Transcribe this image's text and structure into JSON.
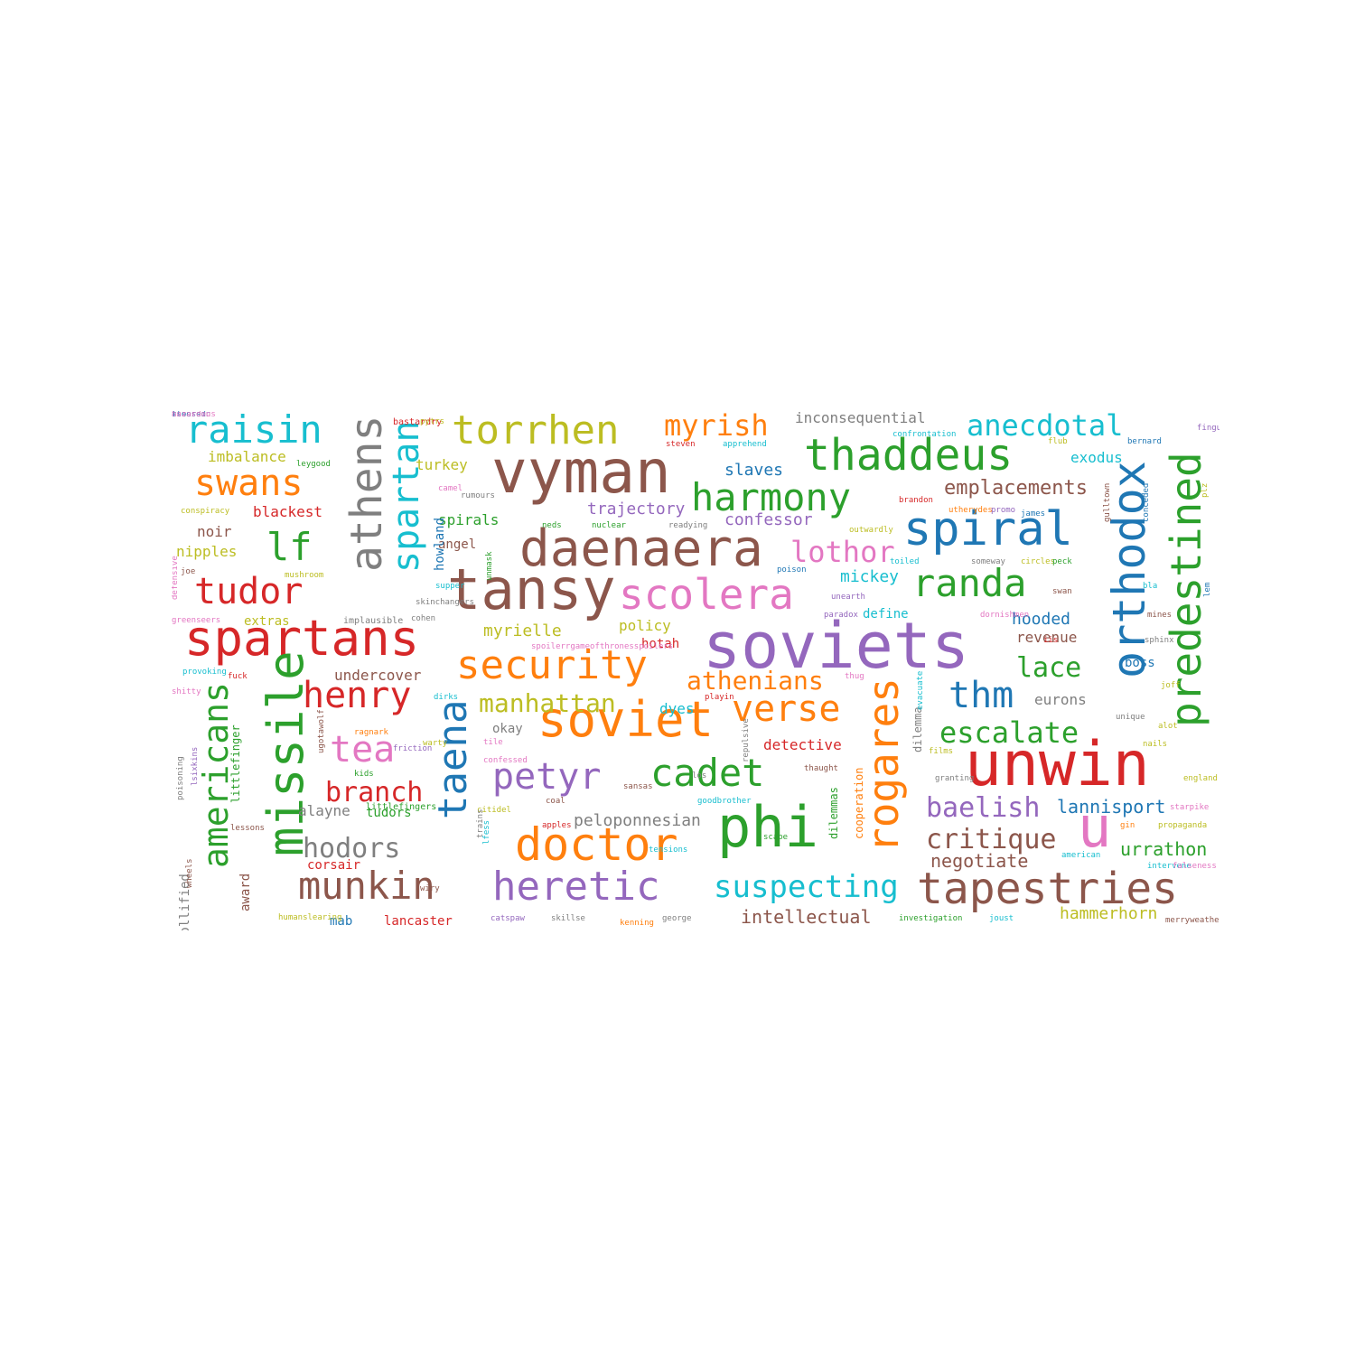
{
  "palette": {
    "blue": "#1f77b4",
    "orange": "#ff7f0e",
    "green": "#2ca02c",
    "red": "#d62728",
    "purple": "#9467bd",
    "brown": "#8c564b",
    "pink": "#e377c2",
    "gray": "#7f7f7f",
    "olive": "#bcbd22",
    "cyan": "#17becf"
  },
  "words": [
    {
      "text": "soviets",
      "color": "purple",
      "size": 70
    },
    {
      "text": "unwin",
      "color": "red",
      "size": 68
    },
    {
      "text": "vyman",
      "color": "brown",
      "size": 66
    },
    {
      "text": "tansy",
      "color": "brown",
      "size": 62
    },
    {
      "text": "phi",
      "color": "green",
      "size": 62
    },
    {
      "text": "daenaera",
      "color": "brown",
      "size": 56
    },
    {
      "text": "spartans",
      "color": "red",
      "size": 54
    },
    {
      "text": "soviet",
      "color": "orange",
      "size": 54
    },
    {
      "text": "missile",
      "color": "green",
      "size": 54
    },
    {
      "text": "u",
      "color": "pink",
      "size": 62
    },
    {
      "text": "spiral",
      "color": "blue",
      "size": 52
    },
    {
      "text": "doctor",
      "color": "orange",
      "size": 50
    },
    {
      "text": "orthodox",
      "color": "blue",
      "size": 50
    },
    {
      "text": "tapestries",
      "color": "brown",
      "size": 48
    },
    {
      "text": "thaddeus",
      "color": "green",
      "size": 48
    },
    {
      "text": "athens",
      "color": "gray",
      "size": 48
    },
    {
      "text": "predestined",
      "color": "green",
      "size": 46
    },
    {
      "text": "rogares",
      "color": "orange",
      "size": 46
    },
    {
      "text": "scolera",
      "color": "pink",
      "size": 46
    },
    {
      "text": "security",
      "color": "orange",
      "size": 44
    },
    {
      "text": "taena",
      "color": "blue",
      "size": 44
    },
    {
      "text": "heretic",
      "color": "purple",
      "size": 44
    },
    {
      "text": "torrhen",
      "color": "olive",
      "size": 44
    },
    {
      "text": "cadet",
      "color": "green",
      "size": 42
    },
    {
      "text": "munkin",
      "color": "brown",
      "size": 42
    },
    {
      "text": "harmony",
      "color": "green",
      "size": 42
    },
    {
      "text": "raisin",
      "color": "cyan",
      "size": 42
    },
    {
      "text": "randa",
      "color": "green",
      "size": 42
    },
    {
      "text": "petyr",
      "color": "purple",
      "size": 40
    },
    {
      "text": "tudor",
      "color": "red",
      "size": 40
    },
    {
      "text": "henry",
      "color": "red",
      "size": 40
    },
    {
      "text": "verse",
      "color": "orange",
      "size": 40
    },
    {
      "text": "thm",
      "color": "blue",
      "size": 40
    },
    {
      "text": "tea",
      "color": "pink",
      "size": 40
    },
    {
      "text": "swans",
      "color": "orange",
      "size": 40
    },
    {
      "text": "lf",
      "color": "green",
      "size": 42
    },
    {
      "text": "spartan",
      "color": "cyan",
      "size": 40
    },
    {
      "text": "americans",
      "color": "green",
      "size": 38
    },
    {
      "text": "suspecting",
      "color": "cyan",
      "size": 34
    },
    {
      "text": "myrish",
      "color": "orange",
      "size": 32
    },
    {
      "text": "anecdotal",
      "color": "cyan",
      "size": 32
    },
    {
      "text": "escalate",
      "color": "green",
      "size": 32
    },
    {
      "text": "lothor",
      "color": "pink",
      "size": 32
    },
    {
      "text": "baelish",
      "color": "purple",
      "size": 30
    },
    {
      "text": "critique",
      "color": "brown",
      "size": 30
    },
    {
      "text": "branch",
      "color": "red",
      "size": 30
    },
    {
      "text": "hodors",
      "color": "gray",
      "size": 30
    },
    {
      "text": "lace",
      "color": "green",
      "size": 30
    },
    {
      "text": "manhattan",
      "color": "olive",
      "size": 28
    },
    {
      "text": "athenians",
      "color": "orange",
      "size": 28
    },
    {
      "text": "emplacements",
      "color": "brown",
      "size": 22
    },
    {
      "text": "lannisport",
      "color": "blue",
      "size": 20
    },
    {
      "text": "negotiate",
      "color": "brown",
      "size": 20
    },
    {
      "text": "urrathon",
      "color": "green",
      "size": 20
    },
    {
      "text": "hammerhorn",
      "color": "olive",
      "size": 18
    },
    {
      "text": "intellectual",
      "color": "brown",
      "size": 20
    },
    {
      "text": "peloponnesian",
      "color": "gray",
      "size": 18
    },
    {
      "text": "trajectory",
      "color": "purple",
      "size": 18
    },
    {
      "text": "confessor",
      "color": "purple",
      "size": 18
    },
    {
      "text": "slaves",
      "color": "blue",
      "size": 18
    },
    {
      "text": "myrielle",
      "color": "olive",
      "size": 18
    },
    {
      "text": "policy",
      "color": "olive",
      "size": 16
    },
    {
      "text": "mickey",
      "color": "cyan",
      "size": 18
    },
    {
      "text": "hooded",
      "color": "blue",
      "size": 18
    },
    {
      "text": "revenue",
      "color": "brown",
      "size": 16
    },
    {
      "text": "exodus",
      "color": "cyan",
      "size": 16
    },
    {
      "text": "spirals",
      "color": "green",
      "size": 16
    },
    {
      "text": "inconsequential",
      "color": "gray",
      "size": 16
    },
    {
      "text": "imbalance",
      "color": "olive",
      "size": 16
    },
    {
      "text": "blackest",
      "color": "red",
      "size": 16
    },
    {
      "text": "turkey",
      "color": "olive",
      "size": 16
    },
    {
      "text": "noir",
      "color": "brown",
      "size": 16
    },
    {
      "text": "nipples",
      "color": "olive",
      "size": 16
    },
    {
      "text": "extras",
      "color": "olive",
      "size": 14
    },
    {
      "text": "angel",
      "color": "brown",
      "size": 14
    },
    {
      "text": "howland",
      "color": "blue",
      "size": 14
    },
    {
      "text": "undercover",
      "color": "brown",
      "size": 16
    },
    {
      "text": "eurons",
      "color": "gray",
      "size": 16
    },
    {
      "text": "dyes",
      "color": "cyan",
      "size": 16
    },
    {
      "text": "detective",
      "color": "red",
      "size": 16
    },
    {
      "text": "hotah",
      "color": "red",
      "size": 14
    },
    {
      "text": "boss",
      "color": "blue",
      "size": 14
    },
    {
      "text": "define",
      "color": "cyan",
      "size": 14
    },
    {
      "text": "alayne",
      "color": "gray",
      "size": 16
    },
    {
      "text": "tudors",
      "color": "green",
      "size": 14
    },
    {
      "text": "corsair",
      "color": "red",
      "size": 14
    },
    {
      "text": "lancaster",
      "color": "red",
      "size": 14
    },
    {
      "text": "mab",
      "color": "blue",
      "size": 14
    },
    {
      "text": "award",
      "color": "brown",
      "size": 14
    },
    {
      "text": "mollified",
      "color": "gray",
      "size": 14
    },
    {
      "text": "okay",
      "color": "gray",
      "size": 14
    },
    {
      "text": "dilemma",
      "color": "gray",
      "size": 12
    },
    {
      "text": "dilemmas",
      "color": "green",
      "size": 12
    },
    {
      "text": "cooperation",
      "color": "orange",
      "size": 12
    },
    {
      "text": "littlefinger",
      "color": "green",
      "size": 12
    },
    {
      "text": "littlefingers",
      "color": "green",
      "size": 10
    },
    {
      "text": "bastardry",
      "color": "red",
      "size": 10
    },
    {
      "text": "pytrs",
      "color": "olive",
      "size": 9
    },
    {
      "text": "leygood",
      "color": "green",
      "size": 9
    },
    {
      "text": "camel",
      "color": "pink",
      "size": 9
    },
    {
      "text": "rumours",
      "color": "gray",
      "size": 9
    },
    {
      "text": "conspiracy",
      "color": "olive",
      "size": 9
    },
    {
      "text": "joe",
      "color": "brown",
      "size": 9
    },
    {
      "text": "mushroom",
      "color": "olive",
      "size": 9
    },
    {
      "text": "defensive",
      "color": "pink",
      "size": 9
    },
    {
      "text": "greenseers",
      "color": "pink",
      "size": 9
    },
    {
      "text": "implausible",
      "color": "gray",
      "size": 10
    },
    {
      "text": "skinchangers",
      "color": "gray",
      "size": 9
    },
    {
      "text": "cohen",
      "color": "gray",
      "size": 9
    },
    {
      "text": "supper",
      "color": "cyan",
      "size": 9
    },
    {
      "text": "unmask",
      "color": "green",
      "size": 9
    },
    {
      "text": "neds",
      "color": "green",
      "size": 9
    },
    {
      "text": "nuclear",
      "color": "green",
      "size": 9
    },
    {
      "text": "readying",
      "color": "gray",
      "size": 9
    },
    {
      "text": "steven",
      "color": "red",
      "size": 9
    },
    {
      "text": "apprehend",
      "color": "cyan",
      "size": 9
    },
    {
      "text": "confrontation",
      "color": "cyan",
      "size": 9
    },
    {
      "text": "flub",
      "color": "olive",
      "size": 9
    },
    {
      "text": "bernard",
      "color": "blue",
      "size": 9
    },
    {
      "text": "fingula",
      "color": "purple",
      "size": 9
    },
    {
      "text": "plz",
      "color": "olive",
      "size": 9
    },
    {
      "text": "brandon",
      "color": "red",
      "size": 9
    },
    {
      "text": "utherydes",
      "color": "orange",
      "size": 9
    },
    {
      "text": "promo",
      "color": "purple",
      "size": 9
    },
    {
      "text": "james",
      "color": "blue",
      "size": 9
    },
    {
      "text": "gulltown",
      "color": "brown",
      "size": 9
    },
    {
      "text": "conceded",
      "color": "blue",
      "size": 9
    },
    {
      "text": "outwardly",
      "color": "olive",
      "size": 9
    },
    {
      "text": "toiled",
      "color": "cyan",
      "size": 9
    },
    {
      "text": "someway",
      "color": "gray",
      "size": 9
    },
    {
      "text": "circles",
      "color": "olive",
      "size": 9
    },
    {
      "text": "peck",
      "color": "green",
      "size": 9
    },
    {
      "text": "poison",
      "color": "blue",
      "size": 9
    },
    {
      "text": "unearth",
      "color": "purple",
      "size": 9
    },
    {
      "text": "paradox",
      "color": "purple",
      "size": 9
    },
    {
      "text": "bla",
      "color": "cyan",
      "size": 9
    },
    {
      "text": "swan",
      "color": "brown",
      "size": 9
    },
    {
      "text": "dornishmen",
      "color": "pink",
      "size": 9
    },
    {
      "text": "mines",
      "color": "brown",
      "size": 9
    },
    {
      "text": "iis",
      "color": "red",
      "size": 9
    },
    {
      "text": "sphinx",
      "color": "gray",
      "size": 9
    },
    {
      "text": "joff",
      "color": "olive",
      "size": 9
    },
    {
      "text": "lem",
      "color": "blue",
      "size": 9
    },
    {
      "text": "spoilerrgameofthronesspoilers",
      "color": "pink",
      "size": 9
    },
    {
      "text": "provoking",
      "color": "cyan",
      "size": 9
    },
    {
      "text": "fuck",
      "color": "red",
      "size": 9
    },
    {
      "text": "shitty",
      "color": "pink",
      "size": 9
    },
    {
      "text": "dirks",
      "color": "cyan",
      "size": 9
    },
    {
      "text": "playin",
      "color": "red",
      "size": 9
    },
    {
      "text": "thug",
      "color": "pink",
      "size": 9
    },
    {
      "text": "evacuate",
      "color": "cyan",
      "size": 9
    },
    {
      "text": "unique",
      "color": "gray",
      "size": 9
    },
    {
      "text": "alot",
      "color": "olive",
      "size": 9
    },
    {
      "text": "ugotawolf",
      "color": "brown",
      "size": 9
    },
    {
      "text": "ragnark",
      "color": "orange",
      "size": 9
    },
    {
      "text": "friction",
      "color": "purple",
      "size": 9
    },
    {
      "text": "warty",
      "color": "olive",
      "size": 9
    },
    {
      "text": "tile",
      "color": "pink",
      "size": 9
    },
    {
      "text": "repulsive",
      "color": "gray",
      "size": 9
    },
    {
      "text": "films",
      "color": "olive",
      "size": 9
    },
    {
      "text": "nails",
      "color": "olive",
      "size": 9
    },
    {
      "text": "poisoning",
      "color": "gray",
      "size": 9
    },
    {
      "text": "lsixkins",
      "color": "purple",
      "size": 9
    },
    {
      "text": "confessed",
      "color": "pink",
      "size": 9
    },
    {
      "text": "thaught",
      "color": "brown",
      "size": 9
    },
    {
      "text": "granting",
      "color": "gray",
      "size": 9
    },
    {
      "text": "england",
      "color": "olive",
      "size": 9
    },
    {
      "text": "kids",
      "color": "green",
      "size": 9
    },
    {
      "text": "sansas",
      "color": "brown",
      "size": 9
    },
    {
      "text": "lfess",
      "color": "cyan",
      "size": 9
    },
    {
      "text": "coal",
      "color": "brown",
      "size": 9
    },
    {
      "text": "goodbrother",
      "color": "cyan",
      "size": 9
    },
    {
      "text": "los",
      "color": "gray",
      "size": 9
    },
    {
      "text": "starpike",
      "color": "pink",
      "size": 9
    },
    {
      "text": "citidel",
      "color": "olive",
      "size": 9
    },
    {
      "text": "lessons",
      "color": "brown",
      "size": 9
    },
    {
      "text": "trains",
      "color": "gray",
      "size": 9
    },
    {
      "text": "apples",
      "color": "red",
      "size": 9
    },
    {
      "text": "tensions",
      "color": "cyan",
      "size": 9
    },
    {
      "text": "gin",
      "color": "orange",
      "size": 9
    },
    {
      "text": "propaganda",
      "color": "olive",
      "size": 9
    },
    {
      "text": "scape",
      "color": "green",
      "size": 9
    },
    {
      "text": "american",
      "color": "cyan",
      "size": 9
    },
    {
      "text": "wheels",
      "color": "brown",
      "size": 9
    },
    {
      "text": "wiry",
      "color": "brown",
      "size": 9
    },
    {
      "text": "intervene",
      "color": "cyan",
      "size": 9
    },
    {
      "text": "falseness",
      "color": "pink",
      "size": 9
    },
    {
      "text": "humanslearing",
      "color": "olive",
      "size": 9
    },
    {
      "text": "catspaw",
      "color": "purple",
      "size": 9
    },
    {
      "text": "skillse",
      "color": "gray",
      "size": 9
    },
    {
      "text": "kenning",
      "color": "orange",
      "size": 9
    },
    {
      "text": "george",
      "color": "gray",
      "size": 9
    },
    {
      "text": "investigation",
      "color": "green",
      "size": 9
    },
    {
      "text": "joust",
      "color": "cyan",
      "size": 9
    },
    {
      "text": "merryweather",
      "color": "brown",
      "size": 9
    },
    {
      "text": "assassin",
      "color": "purple",
      "size": 9
    },
    {
      "text": "floored",
      "color": "blue",
      "size": 9
    },
    {
      "text": "hazardous",
      "color": "pink",
      "size": 9
    }
  ]
}
